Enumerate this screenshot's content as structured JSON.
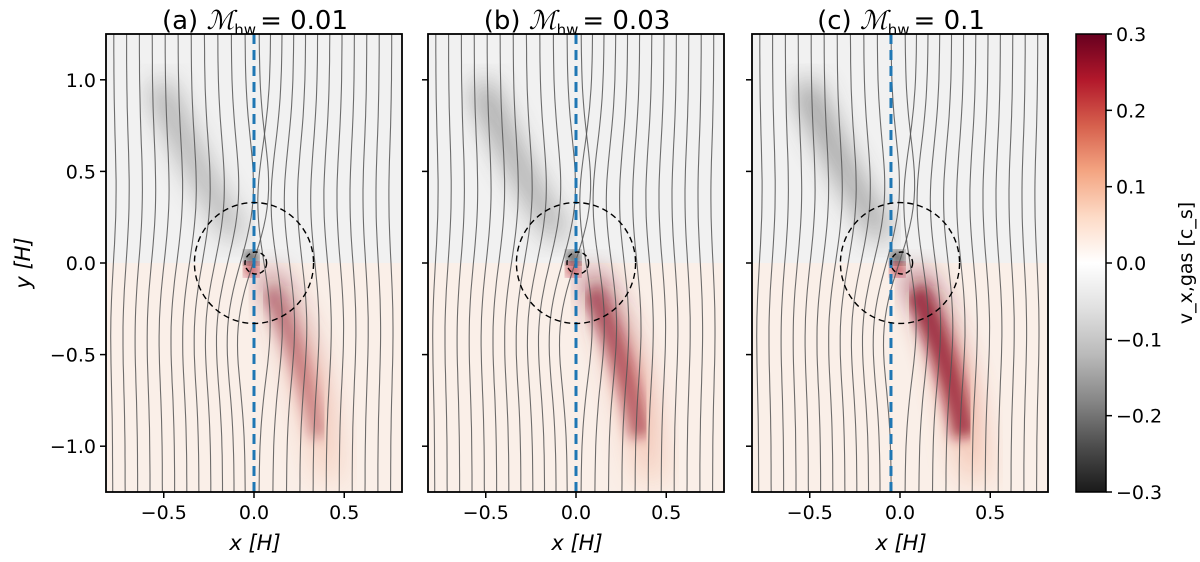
{
  "chart_data": {
    "type": "heatmap",
    "colormap": "RdGy (gray negative, white zero, red positive)",
    "colorbar": {
      "label": "v_x,gas [c_s]",
      "vmin": -0.3,
      "vmax": 0.3,
      "ticks": [
        0.3,
        0.2,
        0.1,
        0.0,
        -0.1,
        -0.2,
        -0.3
      ],
      "tick_labels": [
        "0.3",
        "0.2",
        "0.1",
        "0.0",
        "−0.1",
        "−0.2",
        "−0.3"
      ],
      "colors": [
        "#1a1a1a",
        "#4d4d4d",
        "#878787",
        "#bababa",
        "#e0e0e0",
        "#ffffff",
        "#fddbc7",
        "#f4a582",
        "#d6604d",
        "#b2182b",
        "#67001f"
      ]
    },
    "xlabel": "x [H]",
    "ylabel": "y [H]",
    "xlim": [
      -0.82,
      0.82
    ],
    "ylim": [
      -1.25,
      1.25
    ],
    "x_ticks": [
      -0.5,
      0.0,
      0.5
    ],
    "x_tick_labels": [
      "−0.5",
      "0.0",
      "0.5"
    ],
    "y_ticks": [
      1.0,
      0.5,
      0.0,
      -0.5,
      -1.0
    ],
    "y_tick_labels": [
      "1.0",
      "0.5",
      "0.0",
      "−0.5",
      "−1.0"
    ],
    "panels": [
      {
        "label": "(a)",
        "title_prefix": "(a) ",
        "title_value": "= 0.01",
        "mach_hw": 0.01,
        "dashed_line_x": 0.0,
        "wake_peak": 0.17
      },
      {
        "label": "(b)",
        "title_prefix": "(b) ",
        "title_value": "= 0.03",
        "mach_hw": 0.03,
        "dashed_line_x": 0.0,
        "wake_peak": 0.24
      },
      {
        "label": "(c)",
        "title_prefix": "(c) ",
        "title_value": "= 0.1",
        "mach_hw": 0.1,
        "dashed_line_x": -0.05,
        "wake_peak": 0.3
      }
    ],
    "annotations": {
      "outer_circle_radius": 0.33,
      "inner_circle_radius": 0.06,
      "dashed_line_color": "#1f77b4",
      "streamline_color": "#555555"
    }
  }
}
